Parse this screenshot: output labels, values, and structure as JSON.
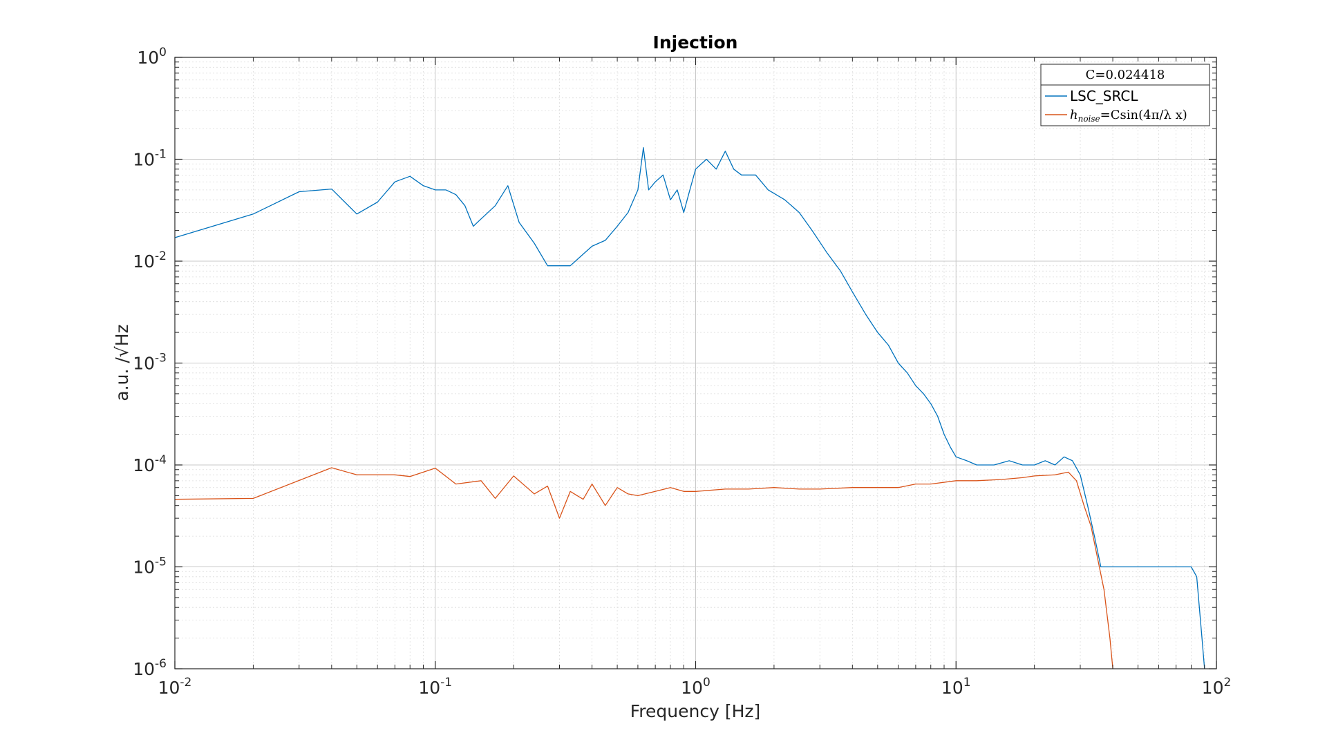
{
  "chart_data": {
    "type": "line",
    "title": "Injection",
    "xlabel": "Frequency [Hz]",
    "ylabel": "a.u. /√Hz",
    "xscale": "log",
    "yscale": "log",
    "xlim": [
      0.01,
      100
    ],
    "ylim": [
      1e-06,
      1
    ],
    "grid": true,
    "x_ticks": [
      {
        "base": "10",
        "exp": "-2"
      },
      {
        "base": "10",
        "exp": "-1"
      },
      {
        "base": "10",
        "exp": "0"
      },
      {
        "base": "10",
        "exp": "1"
      },
      {
        "base": "10",
        "exp": "2"
      }
    ],
    "y_ticks": [
      {
        "base": "10",
        "exp": "0"
      },
      {
        "base": "10",
        "exp": "-1"
      },
      {
        "base": "10",
        "exp": "-2"
      },
      {
        "base": "10",
        "exp": "-3"
      },
      {
        "base": "10",
        "exp": "-4"
      },
      {
        "base": "10",
        "exp": "-5"
      },
      {
        "base": "10",
        "exp": "-6"
      }
    ],
    "legend": {
      "position": "top-right",
      "title": "C=0.024418",
      "entries": [
        {
          "label": "LSC_SRCL",
          "color": "#0072BD"
        },
        {
          "label_main": "h",
          "label_sub": "noise",
          "label_rest": "=Csin(4π/λ x)",
          "color": "#D95319"
        }
      ]
    },
    "series": [
      {
        "name": "LSC_SRCL",
        "color": "#0072BD",
        "x": [
          0.01,
          0.02,
          0.03,
          0.04,
          0.05,
          0.06,
          0.07,
          0.08,
          0.09,
          0.1,
          0.11,
          0.12,
          0.13,
          0.14,
          0.15,
          0.17,
          0.19,
          0.21,
          0.24,
          0.27,
          0.3,
          0.33,
          0.36,
          0.4,
          0.45,
          0.5,
          0.55,
          0.6,
          0.63,
          0.66,
          0.7,
          0.75,
          0.8,
          0.85,
          0.9,
          0.95,
          1.0,
          1.1,
          1.2,
          1.3,
          1.4,
          1.5,
          1.7,
          1.9,
          2.2,
          2.5,
          2.8,
          3.2,
          3.6,
          4.0,
          4.5,
          5.0,
          5.5,
          6.0,
          6.5,
          7.0,
          7.5,
          8.0,
          8.5,
          9.0,
          9.5,
          10,
          11,
          12,
          14,
          16,
          18,
          20,
          22,
          24,
          26,
          28,
          30,
          32,
          34,
          36,
          38,
          40,
          45,
          50,
          55,
          60,
          65,
          70,
          75,
          80,
          84,
          86,
          88,
          90
        ],
        "y": [
          0.017,
          0.029,
          0.048,
          0.051,
          0.029,
          0.038,
          0.06,
          0.068,
          0.055,
          0.05,
          0.05,
          0.045,
          0.035,
          0.022,
          0.026,
          0.035,
          0.055,
          0.024,
          0.015,
          0.009,
          0.009,
          0.009,
          0.011,
          0.014,
          0.016,
          0.022,
          0.03,
          0.05,
          0.13,
          0.05,
          0.06,
          0.07,
          0.04,
          0.05,
          0.03,
          0.05,
          0.08,
          0.1,
          0.08,
          0.12,
          0.08,
          0.07,
          0.07,
          0.05,
          0.04,
          0.03,
          0.02,
          0.012,
          0.008,
          0.005,
          0.003,
          0.002,
          0.0015,
          0.001,
          0.0008,
          0.0006,
          0.0005,
          0.0004,
          0.0003,
          0.0002,
          0.00015,
          0.00012,
          0.00011,
          0.0001,
          0.0001,
          0.00011,
          0.0001,
          0.0001,
          0.00011,
          0.0001,
          0.00012,
          0.00011,
          8e-05,
          4e-05,
          2e-05,
          1e-05,
          1e-05,
          1e-05,
          1e-05,
          1e-05,
          1e-05,
          1e-05,
          1e-05,
          1e-05,
          1e-05,
          1e-05,
          8e-06,
          4e-06,
          2e-06,
          1e-06
        ]
      },
      {
        "name": "h_noise=Csin(4π/λ x)",
        "color": "#D95319",
        "x": [
          0.01,
          0.02,
          0.04,
          0.05,
          0.07,
          0.08,
          0.1,
          0.12,
          0.15,
          0.17,
          0.2,
          0.24,
          0.27,
          0.3,
          0.33,
          0.37,
          0.4,
          0.45,
          0.5,
          0.55,
          0.6,
          0.7,
          0.8,
          0.9,
          1,
          1.3,
          1.6,
          2,
          2.5,
          3,
          4,
          5,
          6,
          7,
          8,
          10,
          12,
          15,
          18,
          20,
          24,
          27,
          29,
          31,
          33,
          35,
          37,
          39,
          40
        ],
        "y": [
          4.6e-05,
          4.7e-05,
          9.4e-05,
          8e-05,
          8e-05,
          7.7e-05,
          9.3e-05,
          6.5e-05,
          7e-05,
          4.7e-05,
          7.8e-05,
          5.2e-05,
          6.2e-05,
          3e-05,
          5.5e-05,
          4.6e-05,
          6.5e-05,
          4e-05,
          6e-05,
          5.2e-05,
          5e-05,
          5.5e-05,
          6e-05,
          5.5e-05,
          5.5e-05,
          5.8e-05,
          5.8e-05,
          6e-05,
          5.8e-05,
          5.8e-05,
          6e-05,
          6e-05,
          6e-05,
          6.5e-05,
          6.5e-05,
          7e-05,
          7e-05,
          7.2e-05,
          7.5e-05,
          7.8e-05,
          8e-05,
          8.5e-05,
          7e-05,
          4e-05,
          2.5e-05,
          1.2e-05,
          6e-06,
          2e-06,
          1e-06
        ]
      }
    ]
  }
}
